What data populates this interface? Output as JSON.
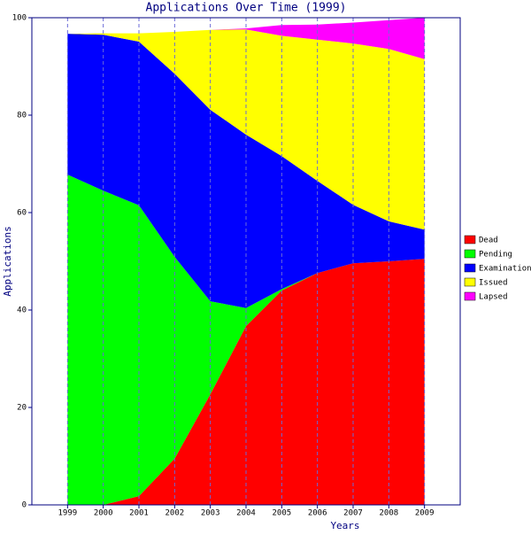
{
  "chart_data": {
    "type": "stacked_area",
    "title": "Applications Over Time (1999)",
    "x_label": "Years",
    "y_label": "Applications",
    "x": [
      1999,
      2000,
      2001,
      2002,
      2003,
      2004,
      2005,
      2006,
      2007,
      2008,
      2009
    ],
    "xlim": [
      1998,
      2010
    ],
    "xticks": [
      1999,
      2000,
      2001,
      2002,
      2003,
      2004,
      2005,
      2006,
      2007,
      2008,
      2009
    ],
    "ylim": [
      0,
      100
    ],
    "yticks": [
      0,
      20,
      40,
      60,
      80,
      100
    ],
    "grid": true,
    "legend": "right",
    "series": [
      {
        "name": "Dead",
        "color": "#ff0000",
        "values": [
          0,
          0,
          1.8,
          9.5,
          22.7,
          36.7,
          44,
          47.6,
          49.6,
          50,
          50.5
        ]
      },
      {
        "name": "Pending",
        "color": "#00ff00",
        "values": [
          67.8,
          64.5,
          59.7,
          41.4,
          19.1,
          3.7,
          0.3,
          0,
          0,
          0,
          0
        ]
      },
      {
        "name": "Examination",
        "color": "#0000ff",
        "values": [
          28.9,
          32,
          33.6,
          37.6,
          39.3,
          35.6,
          27.3,
          18.9,
          12,
          8.2,
          6
        ]
      },
      {
        "name": "Issued",
        "color": "#ffff00",
        "values": [
          0,
          0.3,
          1.7,
          8.6,
          16.4,
          21.6,
          24.7,
          29,
          33.1,
          35.4,
          35
        ]
      },
      {
        "name": "Lapsed",
        "color": "#ff00ff",
        "values": [
          0,
          0,
          0,
          0,
          0,
          0.2,
          2.2,
          3.1,
          4.3,
          5.9,
          8.5
        ]
      }
    ]
  }
}
